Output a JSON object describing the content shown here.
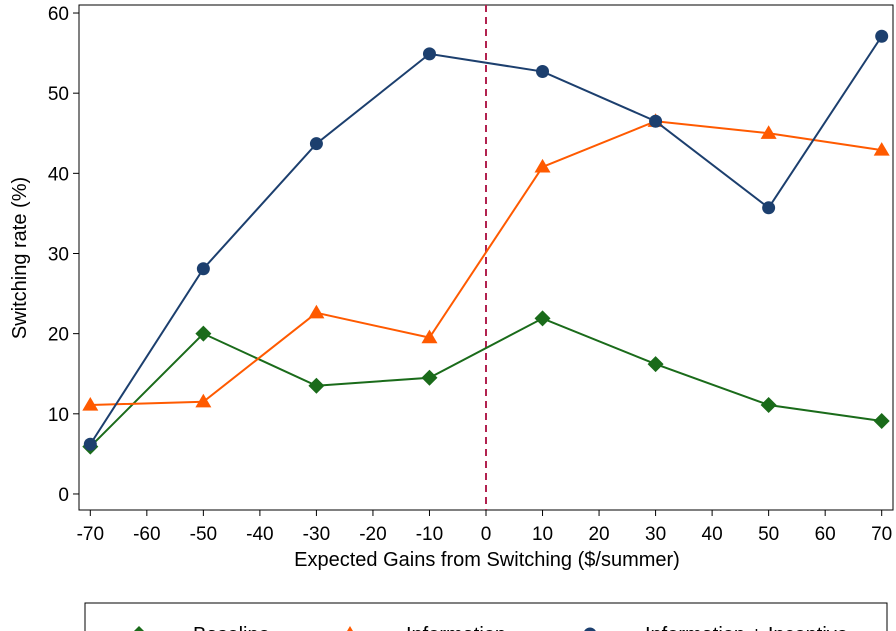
{
  "chart_data": {
    "type": "line",
    "title": "",
    "xlabel": "Expected Gains from Switching ($/summer)",
    "ylabel": "Switching rate (%)",
    "xlim": [
      -72,
      72
    ],
    "ylim": [
      -2,
      61
    ],
    "x_ticks": [
      -70,
      -60,
      -50,
      -40,
      -30,
      -20,
      -10,
      0,
      10,
      20,
      30,
      40,
      50,
      60,
      70
    ],
    "y_ticks": [
      0,
      10,
      20,
      30,
      40,
      50,
      60
    ],
    "grid": false,
    "legend_position": "bottom",
    "reference_line": {
      "x": 0,
      "style": "dashed",
      "color": "#b2224f"
    },
    "x": [
      -70,
      -50,
      -30,
      -10,
      10,
      30,
      50,
      70
    ],
    "series": [
      {
        "name": "Baseline",
        "marker": "diamond",
        "color": "#1a6b1a",
        "values": [
          5.9,
          20.0,
          13.5,
          14.5,
          21.9,
          16.2,
          11.1,
          9.1
        ]
      },
      {
        "name": "Information",
        "marker": "triangle",
        "color": "#ff5a00",
        "values": [
          11.1,
          11.5,
          22.6,
          19.5,
          40.8,
          46.5,
          45.0,
          42.9
        ]
      },
      {
        "name": "Information + Incentive",
        "marker": "circle",
        "color": "#1c3f6e",
        "values": [
          6.2,
          28.1,
          43.7,
          54.9,
          52.7,
          46.5,
          35.7,
          57.1
        ]
      }
    ]
  }
}
